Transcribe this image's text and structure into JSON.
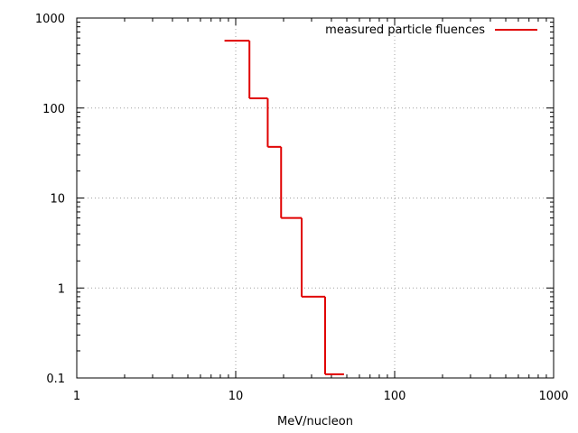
{
  "chart_data": {
    "type": "line",
    "style": "step",
    "x_scale": "log",
    "y_scale": "log",
    "xlim": [
      1,
      1000
    ],
    "ylim": [
      0.1,
      1000
    ],
    "xlabel": "MeV/nucleon",
    "ylabel": "",
    "x_ticks": [
      {
        "value": 1,
        "label": "1"
      },
      {
        "value": 10,
        "label": "10"
      },
      {
        "value": 100,
        "label": "100"
      },
      {
        "value": 1000,
        "label": "1000"
      }
    ],
    "y_ticks": [
      {
        "value": 0.1,
        "label": "0.1"
      },
      {
        "value": 1,
        "label": "1"
      },
      {
        "value": 10,
        "label": "10"
      },
      {
        "value": 100,
        "label": "100"
      },
      {
        "value": 1000,
        "label": "1000"
      }
    ],
    "grid": true,
    "legend_position": "top-right",
    "series": [
      {
        "name": "measured particle fluences",
        "color": "#e00000",
        "bins": [
          {
            "x_start": 8.5,
            "x_end": 12.2,
            "y": 560
          },
          {
            "x_start": 12.2,
            "x_end": 15.9,
            "y": 128
          },
          {
            "x_start": 15.9,
            "x_end": 19.3,
            "y": 37
          },
          {
            "x_start": 19.3,
            "x_end": 26.0,
            "y": 6
          },
          {
            "x_start": 26.0,
            "x_end": 36.5,
            "y": 0.8
          },
          {
            "x_start": 36.5,
            "x_end": 48.0,
            "y": 0.11
          }
        ]
      }
    ]
  }
}
